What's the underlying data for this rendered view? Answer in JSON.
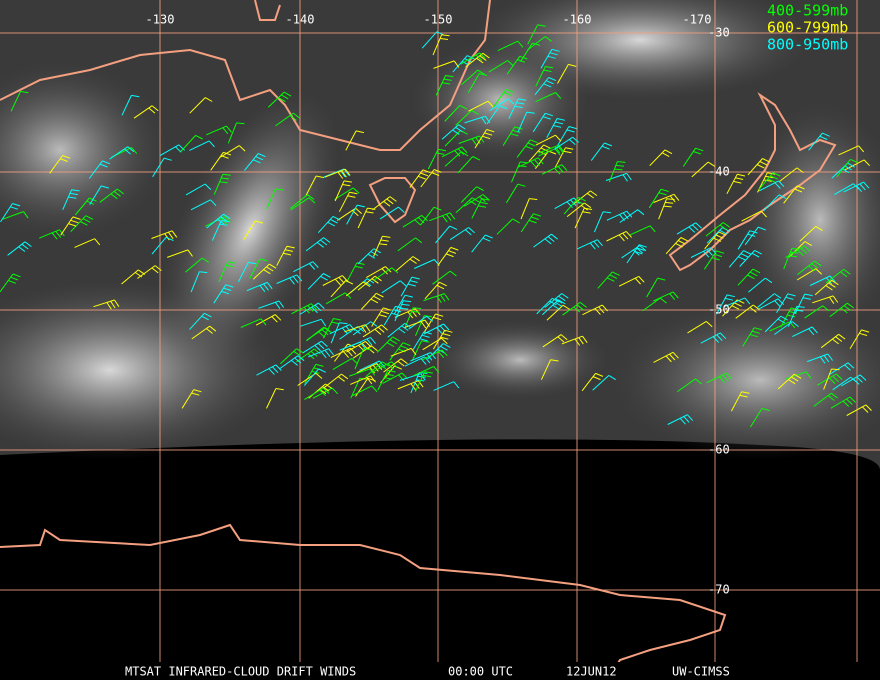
{
  "map": {
    "lon_labels": [
      "-130",
      "-140",
      "-150",
      "-160",
      "-170"
    ],
    "lat_labels": [
      "-30",
      "-40",
      "-50",
      "-60",
      "-70"
    ],
    "legend": [
      {
        "label": "400-599mb",
        "color": "#00ff00"
      },
      {
        "label": "600-799mb",
        "color": "#ffff00"
      },
      {
        "label": "800-950mb",
        "color": "#00ffff"
      }
    ],
    "footer": {
      "title": "MTSAT INFRARED-CLOUD DRIFT WINDS",
      "time": "00:00 UTC",
      "date": "12JUN12",
      "source": "UW-CIMSS"
    }
  }
}
